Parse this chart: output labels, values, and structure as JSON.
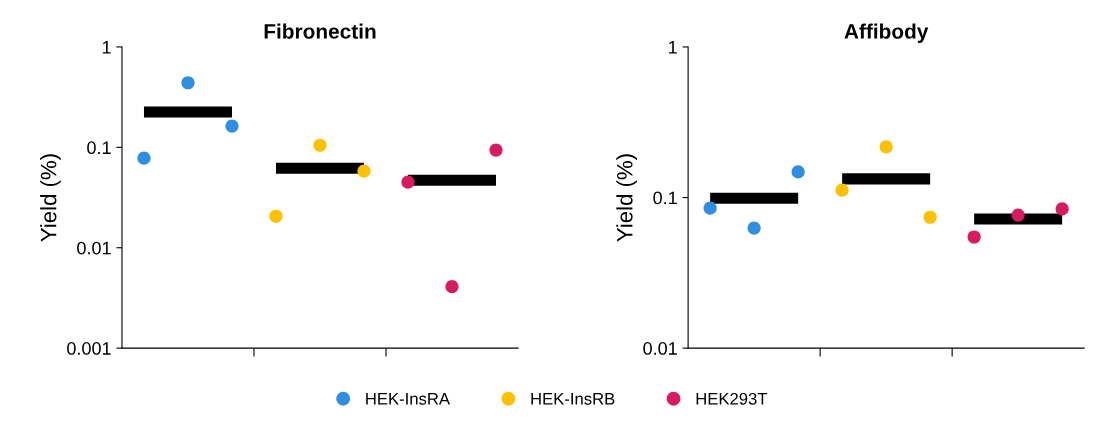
{
  "chart_data": [
    {
      "type": "scatter",
      "title": "Fibronectin",
      "ylabel": "Yield (%)",
      "log": "y",
      "ylim": [
        0.001,
        1
      ],
      "yticks": [
        0.001,
        0.01,
        0.1,
        1
      ],
      "grid": false,
      "legend": "bottom",
      "marker": "circle",
      "categories": [
        null,
        null,
        null,
        null,
        null,
        null,
        null,
        null,
        null
      ],
      "series": [
        {
          "name": "HEK-InsRA",
          "color": "#2e8ee0",
          "values": [
            0.078,
            0.44,
            0.163,
            null,
            null,
            null,
            null,
            null,
            null
          ]
        },
        {
          "name": "HEK-InsRB",
          "color": "#ffc000",
          "values": [
            null,
            null,
            null,
            0.0206,
            0.105,
            0.058,
            null,
            null,
            null
          ]
        },
        {
          "name": "HEK293T",
          "color": "#d81b60",
          "values": [
            null,
            null,
            null,
            null,
            null,
            null,
            0.045,
            0.0041,
            0.094
          ]
        },
        {
          "type": "line",
          "marker": "none",
          "color": "#000000",
          "values": [
            0.225,
            0.225,
            0.225,
            null,
            null,
            null,
            null,
            null,
            null
          ]
        },
        {
          "type": "line",
          "marker": "none",
          "color": "#000000",
          "values": [
            null,
            null,
            null,
            0.062,
            0.062,
            0.062,
            null,
            null,
            null
          ]
        },
        {
          "type": "line",
          "marker": "none",
          "color": "#000000",
          "values": [
            null,
            null,
            null,
            null,
            null,
            null,
            0.047,
            0.047,
            0.047
          ]
        }
      ]
    },
    {
      "type": "scatter",
      "title": "Affibody",
      "ylabel": "Yield (%)",
      "log": "y",
      "ylim": [
        0.01,
        1
      ],
      "yticks": [
        0.01,
        0.1,
        1
      ],
      "grid": false,
      "marker": "circle",
      "categories": [
        null,
        null,
        null,
        null,
        null,
        null,
        null,
        null,
        null
      ],
      "series": [
        {
          "color": "#2e8ee0",
          "values": [
            0.085,
            0.0627,
            0.148,
            null,
            null,
            null,
            null,
            null,
            null
          ]
        },
        {
          "color": "#ffc000",
          "values": [
            null,
            null,
            null,
            0.112,
            0.217,
            0.074,
            null,
            null,
            null
          ]
        },
        {
          "color": "#d81b60",
          "values": [
            null,
            null,
            null,
            null,
            null,
            null,
            0.0547,
            0.0765,
            0.084
          ]
        },
        {
          "type": "line",
          "marker": "none",
          "color": "#000000",
          "values": [
            0.099,
            0.099,
            0.099,
            null,
            null,
            null,
            null,
            null,
            null
          ]
        },
        {
          "type": "line",
          "marker": "none",
          "color": "#000000",
          "values": [
            null,
            null,
            null,
            0.133,
            0.133,
            0.133,
            null,
            null,
            null
          ]
        },
        {
          "type": "line",
          "marker": "none",
          "color": "#000000",
          "values": [
            null,
            null,
            null,
            null,
            null,
            null,
            0.072,
            0.072,
            0.072
          ]
        }
      ]
    }
  ]
}
